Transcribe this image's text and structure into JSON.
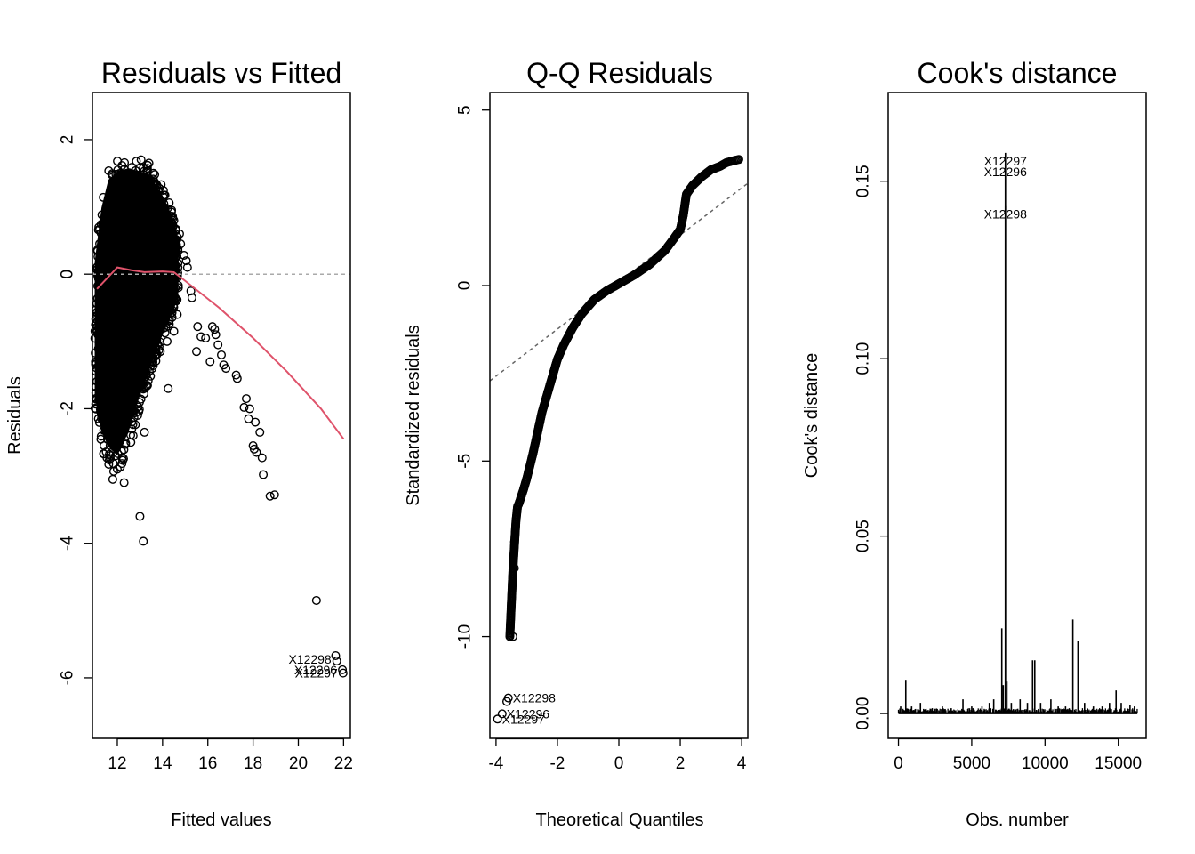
{
  "chart_data": [
    {
      "type": "scatter",
      "title": "Residuals vs Fitted",
      "xlabel": "Fitted values",
      "ylabel": "Residuals",
      "xlim": [
        10.9,
        22.3
      ],
      "ylim": [
        -6.9,
        2.7
      ],
      "xticks": [
        "12",
        "14",
        "16",
        "18",
        "20",
        "22"
      ],
      "yticks": [
        "-6",
        "-4",
        "-2",
        "0",
        "2"
      ],
      "reference_line": {
        "y": 0,
        "style": "dotted",
        "color": "#aaaaaa"
      },
      "smoother": {
        "color": "#DF536B",
        "x": [
          11.1,
          12.0,
          12.6,
          13.2,
          14.0,
          14.5,
          15.0,
          16.5,
          18.0,
          19.5,
          21.0,
          22.0
        ],
        "y": [
          -0.22,
          0.1,
          0.06,
          0.03,
          0.04,
          0.03,
          -0.1,
          -0.5,
          -0.95,
          -1.45,
          -2.0,
          -2.45
        ]
      },
      "labeled_points": [
        {
          "label": "X12298",
          "x": 21.7,
          "y": -5.72
        },
        {
          "label": "X12296",
          "x": 21.95,
          "y": -5.88
        },
        {
          "label": "X12297",
          "x": 21.98,
          "y": -5.93
        }
      ],
      "outlier_points": [
        {
          "x": 20.8,
          "y": -4.85
        },
        {
          "x": 21.65,
          "y": -5.67
        },
        {
          "x": 21.7,
          "y": -5.75
        },
        {
          "x": 21.95,
          "y": -5.88
        },
        {
          "x": 21.98,
          "y": -5.93
        },
        {
          "x": 13.0,
          "y": -3.6
        },
        {
          "x": 13.15,
          "y": -3.97
        },
        {
          "x": 13.2,
          "y": -2.35
        },
        {
          "x": 14.25,
          "y": -1.7
        },
        {
          "x": 18.75,
          "y": -3.3
        },
        {
          "x": 18.95,
          "y": -3.28
        },
        {
          "x": 18.45,
          "y": -2.98
        },
        {
          "x": 18.4,
          "y": -2.73
        },
        {
          "x": 18.05,
          "y": -2.6
        },
        {
          "x": 18.0,
          "y": -2.55
        },
        {
          "x": 18.15,
          "y": -2.65
        },
        {
          "x": 18.3,
          "y": -2.35
        },
        {
          "x": 17.8,
          "y": -2.15
        },
        {
          "x": 18.1,
          "y": -2.2
        },
        {
          "x": 17.6,
          "y": -1.98
        },
        {
          "x": 17.7,
          "y": -1.85
        },
        {
          "x": 17.85,
          "y": -2.0
        },
        {
          "x": 17.3,
          "y": -1.55
        },
        {
          "x": 17.25,
          "y": -1.5
        },
        {
          "x": 16.8,
          "y": -1.4
        },
        {
          "x": 16.7,
          "y": -1.35
        },
        {
          "x": 16.6,
          "y": -1.2
        },
        {
          "x": 16.45,
          "y": -1.05
        },
        {
          "x": 16.35,
          "y": -0.9
        },
        {
          "x": 16.3,
          "y": -0.82
        },
        {
          "x": 16.2,
          "y": -0.78
        },
        {
          "x": 16.1,
          "y": -1.3
        },
        {
          "x": 15.9,
          "y": -0.95
        },
        {
          "x": 15.7,
          "y": -0.93
        },
        {
          "x": 15.55,
          "y": -0.78
        },
        {
          "x": 15.5,
          "y": -1.15
        },
        {
          "x": 15.3,
          "y": -0.35
        },
        {
          "x": 15.25,
          "y": -0.25
        },
        {
          "x": 15.1,
          "y": 0.1
        },
        {
          "x": 15.05,
          "y": 0.2
        },
        {
          "x": 14.95,
          "y": 0.28
        },
        {
          "x": 14.8,
          "y": 0.45
        },
        {
          "x": 14.75,
          "y": 0.6
        },
        {
          "x": 14.6,
          "y": 0.65
        },
        {
          "x": 14.5,
          "y": 0.8
        },
        {
          "x": 14.4,
          "y": 0.95
        },
        {
          "x": 14.7,
          "y": -0.2
        },
        {
          "x": 14.65,
          "y": -0.6
        },
        {
          "x": 14.5,
          "y": -0.85
        },
        {
          "x": 14.2,
          "y": -1.0
        },
        {
          "x": 13.9,
          "y": -1.15
        },
        {
          "x": 13.6,
          "y": -1.25
        },
        {
          "x": 13.3,
          "y": -1.5
        },
        {
          "x": 13.1,
          "y": -1.65
        },
        {
          "x": 12.9,
          "y": -2.1
        },
        {
          "x": 12.7,
          "y": -2.4
        },
        {
          "x": 12.6,
          "y": -2.5
        },
        {
          "x": 12.3,
          "y": -3.1
        },
        {
          "x": 11.8,
          "y": -3.05
        },
        {
          "x": 12.0,
          "y": -2.9
        },
        {
          "x": 13.05,
          "y": 1.7
        },
        {
          "x": 13.4,
          "y": 1.65
        },
        {
          "x": 13.6,
          "y": 1.5
        }
      ],
      "bulk_region": {
        "description_points": "dense cloud of observations",
        "x_range": [
          11.0,
          14.7
        ],
        "upper_envelope": [
          [
            11.0,
            0.2
          ],
          [
            11.3,
            1.1
          ],
          [
            11.6,
            1.55
          ],
          [
            12.0,
            1.7
          ],
          [
            12.5,
            1.75
          ],
          [
            13.0,
            1.7
          ],
          [
            13.5,
            1.6
          ],
          [
            14.0,
            1.3
          ],
          [
            14.5,
            0.9
          ],
          [
            14.7,
            0.5
          ]
        ],
        "lower_envelope": [
          [
            11.0,
            -2.0
          ],
          [
            11.3,
            -2.6
          ],
          [
            11.6,
            -2.85
          ],
          [
            12.0,
            -3.0
          ],
          [
            12.5,
            -2.6
          ],
          [
            13.0,
            -2.0
          ],
          [
            13.5,
            -1.5
          ],
          [
            14.0,
            -1.0
          ],
          [
            14.5,
            -0.6
          ],
          [
            14.7,
            -0.3
          ]
        ]
      }
    },
    {
      "type": "scatter",
      "title": "Q-Q Residuals",
      "xlabel": "Theoretical Quantiles",
      "ylabel": "Standardized residuals",
      "xlim": [
        -4.2,
        4.2
      ],
      "ylim": [
        -12.9,
        5.5
      ],
      "xticks": [
        "-4",
        "-2",
        "0",
        "2",
        "4"
      ],
      "yticks": [
        "-10",
        "-5",
        "0",
        "5"
      ],
      "reference_line": {
        "slope": 0.67,
        "intercept": 0.1,
        "style": "dotted",
        "color": "#666666"
      },
      "curve": {
        "x": [
          -3.55,
          -3.45,
          -3.35,
          -3.3,
          -3.25,
          -3.1,
          -3.0,
          -2.8,
          -2.5,
          -2.2,
          -2.0,
          -1.8,
          -1.5,
          -1.2,
          -0.8,
          -0.4,
          0.0,
          0.5,
          1.0,
          1.5,
          1.8,
          2.0,
          2.1,
          2.2,
          2.4,
          2.7,
          3.0,
          3.3,
          3.5,
          3.7,
          3.95
        ],
        "y": [
          -10.0,
          -8.1,
          -6.7,
          -6.3,
          -6.2,
          -5.8,
          -5.5,
          -4.8,
          -3.6,
          -2.7,
          -2.1,
          -1.7,
          -1.2,
          -0.8,
          -0.4,
          -0.15,
          0.05,
          0.3,
          0.6,
          1.0,
          1.35,
          1.6,
          2.0,
          2.6,
          2.85,
          3.1,
          3.3,
          3.4,
          3.5,
          3.55,
          3.6
        ]
      },
      "extra_points": [
        {
          "x": -3.4,
          "y": -7.3
        },
        {
          "x": -3.4,
          "y": -8.05
        },
        {
          "x": -3.45,
          "y": -10.0
        },
        {
          "x": -3.6,
          "y": -11.75
        },
        {
          "x": -3.65,
          "y": -11.85
        },
        {
          "x": -3.8,
          "y": -12.2
        },
        {
          "x": -3.95,
          "y": -12.35
        }
      ],
      "labeled_points": [
        {
          "label": "X12298",
          "x": -3.6,
          "y": -11.75
        },
        {
          "label": "X12296",
          "x": -3.8,
          "y": -12.2
        },
        {
          "label": "X12297",
          "x": -3.95,
          "y": -12.35
        }
      ]
    },
    {
      "type": "bar",
      "title": "Cook's distance",
      "xlabel": "Obs. number",
      "ylabel": "Cook's distance",
      "xlim": [
        -700,
        16900
      ],
      "ylim": [
        -0.007,
        0.175
      ],
      "xticks": [
        "0",
        "5000",
        "10000",
        "15000"
      ],
      "yticks": [
        "0.00",
        "0.05",
        "0.10",
        "0.15"
      ],
      "spikes": [
        {
          "x": 150,
          "y": 0.002
        },
        {
          "x": 500,
          "y": 0.0095
        },
        {
          "x": 900,
          "y": 0.002
        },
        {
          "x": 1500,
          "y": 0.003
        },
        {
          "x": 2300,
          "y": 0.0015
        },
        {
          "x": 3000,
          "y": 0.002
        },
        {
          "x": 3600,
          "y": 0.0015
        },
        {
          "x": 4400,
          "y": 0.004
        },
        {
          "x": 5000,
          "y": 0.002
        },
        {
          "x": 5700,
          "y": 0.002
        },
        {
          "x": 6200,
          "y": 0.003
        },
        {
          "x": 6500,
          "y": 0.004
        },
        {
          "x": 7050,
          "y": 0.024
        },
        {
          "x": 7150,
          "y": 0.008
        },
        {
          "x": 7296,
          "y": 0.155
        },
        {
          "x": 7297,
          "y": 0.158
        },
        {
          "x": 7298,
          "y": 0.143
        },
        {
          "x": 7400,
          "y": 0.009
        },
        {
          "x": 7700,
          "y": 0.003
        },
        {
          "x": 8300,
          "y": 0.004
        },
        {
          "x": 8800,
          "y": 0.003
        },
        {
          "x": 9150,
          "y": 0.015
        },
        {
          "x": 9300,
          "y": 0.015
        },
        {
          "x": 9700,
          "y": 0.003
        },
        {
          "x": 10400,
          "y": 0.004
        },
        {
          "x": 10900,
          "y": 0.002
        },
        {
          "x": 11400,
          "y": 0.002
        },
        {
          "x": 11900,
          "y": 0.0265
        },
        {
          "x": 12250,
          "y": 0.0205
        },
        {
          "x": 12700,
          "y": 0.003
        },
        {
          "x": 13300,
          "y": 0.002
        },
        {
          "x": 13900,
          "y": 0.002
        },
        {
          "x": 14400,
          "y": 0.003
        },
        {
          "x": 14850,
          "y": 0.0065
        },
        {
          "x": 15200,
          "y": 0.003
        },
        {
          "x": 15800,
          "y": 0.0025
        },
        {
          "x": 16100,
          "y": 0.002
        }
      ],
      "labeled_points": [
        {
          "label": "X12297",
          "x": 7297,
          "y": 0.158
        },
        {
          "label": "X12296",
          "x": 7296,
          "y": 0.155
        },
        {
          "label": "X12298",
          "x": 7298,
          "y": 0.143
        }
      ]
    }
  ]
}
